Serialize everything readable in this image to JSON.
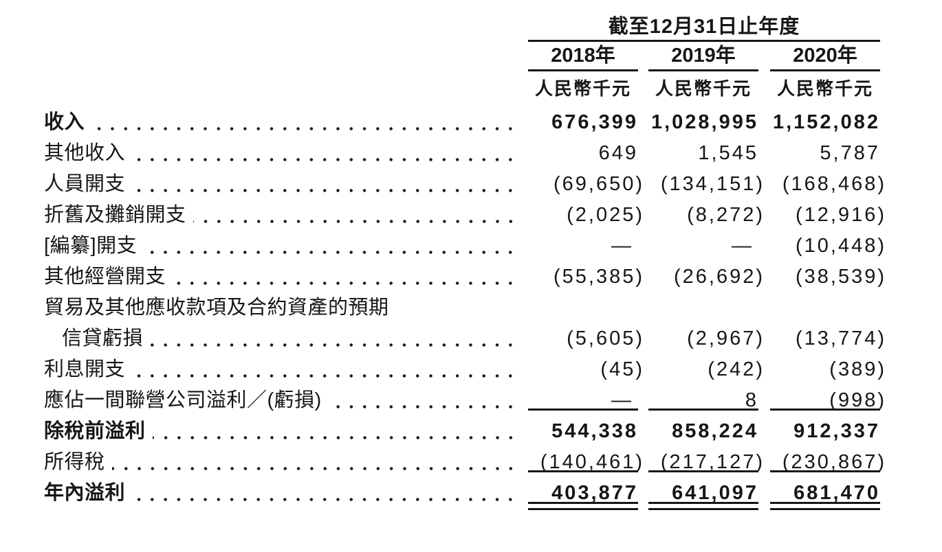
{
  "colors": {
    "background": "#ffffff",
    "text": "#161616",
    "rule": "#161616"
  },
  "table": {
    "period_header": "截至12月31日止年度",
    "columns": [
      {
        "year": "2018年",
        "unit": "人民幣千元"
      },
      {
        "year": "2019年",
        "unit": "人民幣千元"
      },
      {
        "year": "2020年",
        "unit": "人民幣千元"
      }
    ],
    "rows": [
      {
        "label": "收入",
        "bold": true,
        "leader": true,
        "values": [
          "676,399",
          "1,028,995",
          "1,152,082"
        ]
      },
      {
        "label": "其他收入",
        "bold": false,
        "leader": true,
        "values": [
          "649",
          "1,545",
          "5,787"
        ]
      },
      {
        "label": "人員開支",
        "bold": false,
        "leader": true,
        "values": [
          "(69,650)",
          "(134,151)",
          "(168,468)"
        ]
      },
      {
        "label": "折舊及攤銷開支",
        "bold": false,
        "leader": true,
        "values": [
          "(2,025)",
          "(8,272)",
          "(12,916)"
        ]
      },
      {
        "label": "[編纂]開支",
        "bold": false,
        "leader": true,
        "values": [
          "—",
          "—",
          "(10,448)"
        ]
      },
      {
        "label": "其他經營開支",
        "bold": false,
        "leader": true,
        "values": [
          "(55,385)",
          "(26,692)",
          "(38,539)"
        ]
      },
      {
        "label": "貿易及其他應收款項及合約資產的預期",
        "bold": false,
        "leader": false,
        "values": null
      },
      {
        "label": "信貸虧損",
        "bold": false,
        "indent": true,
        "leader": true,
        "values": [
          "(5,605)",
          "(2,967)",
          "(13,774)"
        ]
      },
      {
        "label": "利息開支",
        "bold": false,
        "leader": true,
        "values": [
          "(45)",
          "(242)",
          "(389)"
        ]
      },
      {
        "label": "應佔一間聯營公司溢利／(虧損)",
        "bold": false,
        "leader": true,
        "values": [
          "—",
          "8",
          "(998)"
        ],
        "rule_after": "single"
      },
      {
        "label": "除稅前溢利",
        "bold": true,
        "leader": true,
        "values": [
          "544,338",
          "858,224",
          "912,337"
        ]
      },
      {
        "label": "所得稅",
        "bold": false,
        "leader": true,
        "values": [
          "(140,461)",
          "(217,127)",
          "(230,867)"
        ],
        "rule_after": "single"
      },
      {
        "label": "年內溢利",
        "bold": true,
        "leader": true,
        "values": [
          "403,877",
          "641,097",
          "681,470"
        ],
        "rule_after": "double"
      }
    ]
  }
}
